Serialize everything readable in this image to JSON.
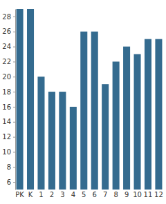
{
  "chart_data": {
    "type": "bar",
    "categories": [
      "PK",
      "K",
      "1",
      "2",
      "3",
      "4",
      "5",
      "6",
      "7",
      "8",
      "9",
      "10",
      "11",
      "12"
    ],
    "values": [
      29,
      29,
      20,
      18,
      18,
      16,
      26,
      26,
      19,
      22,
      24,
      23,
      25,
      25
    ],
    "color": "#346b8f",
    "ylim": [
      5,
      29
    ],
    "yticks": [
      6,
      8,
      10,
      12,
      14,
      16,
      18,
      20,
      22,
      24,
      26,
      28
    ],
    "grid": false
  }
}
